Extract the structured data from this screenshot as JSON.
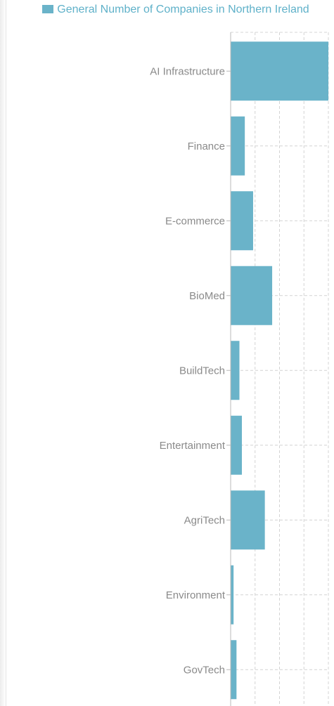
{
  "chart_data": {
    "type": "bar",
    "orientation": "horizontal",
    "title": "",
    "xlabel": "",
    "ylabel": "",
    "categories": [
      "AI Infrastructure",
      "Finance",
      "E-commerce",
      "BioMed",
      "BuildTech",
      "Entertainment",
      "AgriTech",
      "Environment",
      "GovTech"
    ],
    "series": [
      {
        "name": "General Number of Companies in Northern Ireland",
        "values": [
          200,
          29,
          46,
          85,
          18,
          23,
          70,
          6,
          12
        ]
      }
    ],
    "xlim": [
      0,
      200
    ],
    "grid": true,
    "legend_position": "top-center",
    "colors": {
      "bar": "#6ab3c9",
      "legend_text": "#5fb1c9",
      "axis": "#b8b8b8",
      "grid": "#d4d4d4",
      "tick_text": "#8a8a8a"
    }
  }
}
